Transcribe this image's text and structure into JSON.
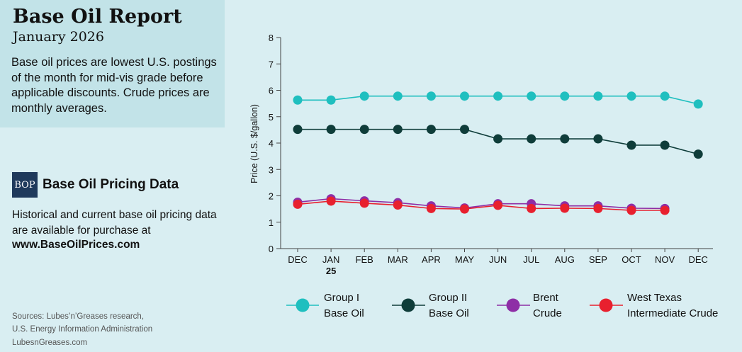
{
  "header": {
    "title": "Base Oil Report",
    "subtitle": "January 2026",
    "description": "Base oil prices are lowest U.S. postings of the month for mid-vis grade before applicable discounts. Crude prices are monthly averages."
  },
  "promo": {
    "badge": "BOP",
    "title": "Base Oil Pricing Data",
    "text": "Historical and current base oil pricing data are available for purchase at",
    "url": "www.BaseOilPrices.com"
  },
  "footer": {
    "sources_line1": "Sources: Lubes’n’Greases research,",
    "sources_line2": "U.S. Energy Information Administration",
    "site": "LubesnGreases.com"
  },
  "chart_data": {
    "type": "line",
    "categories": [
      "DEC",
      "JAN",
      "FEB",
      "MAR",
      "APR",
      "MAY",
      "JUN",
      "JUL",
      "AUG",
      "SEP",
      "OCT",
      "NOV",
      "DEC"
    ],
    "year_label": "25",
    "ylabel": "Price (U.S. $/gallon)",
    "ylim": [
      0,
      8
    ],
    "yticks": [
      0,
      1,
      2,
      3,
      4,
      5,
      6,
      7,
      8
    ],
    "grid": false,
    "series": [
      {
        "name": "Group I Base Oil",
        "legend_lines": [
          "Group I",
          "Base Oil"
        ],
        "color": "#1fbfbf",
        "values": [
          5.63,
          5.63,
          5.78,
          5.78,
          5.78,
          5.78,
          5.78,
          5.78,
          5.78,
          5.78,
          5.78,
          5.78,
          5.48
        ]
      },
      {
        "name": "Group II Base Oil",
        "legend_lines": [
          "Group II",
          "Base Oil"
        ],
        "color": "#0f3d3a",
        "values": [
          4.52,
          4.52,
          4.52,
          4.52,
          4.52,
          4.52,
          4.16,
          4.16,
          4.16,
          4.16,
          3.92,
          3.92,
          3.58
        ]
      },
      {
        "name": "Brent Crude",
        "legend_lines": [
          "Brent",
          "Crude"
        ],
        "color": "#8e2ea6",
        "values": [
          1.76,
          1.89,
          1.81,
          1.74,
          1.62,
          1.54,
          1.7,
          1.7,
          1.62,
          1.62,
          1.53,
          1.52,
          null
        ]
      },
      {
        "name": "West Texas Intermediate Crude",
        "legend_lines": [
          "West Texas",
          "Intermediate Crude"
        ],
        "color": "#e8202e",
        "values": [
          1.68,
          1.8,
          1.72,
          1.65,
          1.52,
          1.5,
          1.64,
          1.52,
          1.53,
          1.52,
          1.45,
          1.45,
          null
        ]
      }
    ]
  }
}
